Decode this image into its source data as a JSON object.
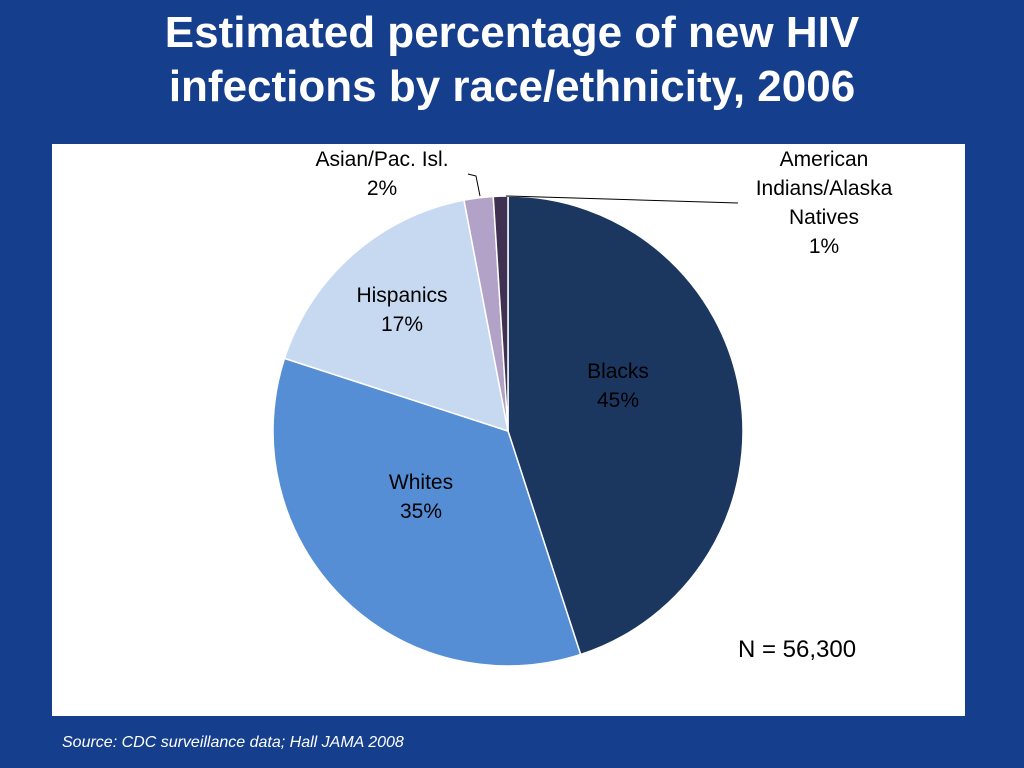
{
  "slide": {
    "title_line1": "Estimated percentage of new HIV",
    "title_line2": "infections by race/ethnicity, 2006",
    "sample_size": "N = 56,300",
    "source": "Source: CDC surveillance data; Hall JAMA 2008"
  },
  "colors": {
    "background": "#153f8c",
    "panel": "#ffffff",
    "text": "#ffffff"
  },
  "chart_data": {
    "type": "pie",
    "title": "Estimated percentage of new HIV infections by race/ethnicity, 2006",
    "start_angle_deg": 0,
    "direction": "clockwise",
    "slices": [
      {
        "key": "blacks",
        "label_lines": [
          "Blacks",
          "45%"
        ],
        "value": 45,
        "color": "#1b365f"
      },
      {
        "key": "whites",
        "label_lines": [
          "Whites",
          "35%"
        ],
        "value": 35,
        "color": "#558ed5"
      },
      {
        "key": "hispanics",
        "label_lines": [
          "Hispanics",
          "17%"
        ],
        "value": 17,
        "color": "#c6d9f1"
      },
      {
        "key": "asian-pac-isl",
        "label_lines": [
          "Asian/Pac. Isl.",
          "2%"
        ],
        "value": 2,
        "color": "#b3a2c7"
      },
      {
        "key": "american-indians-alaska-natives",
        "label_lines": [
          "American",
          "Indians/Alaska",
          "Natives",
          "1%"
        ],
        "value": 1,
        "color": "#3f3151"
      }
    ]
  }
}
